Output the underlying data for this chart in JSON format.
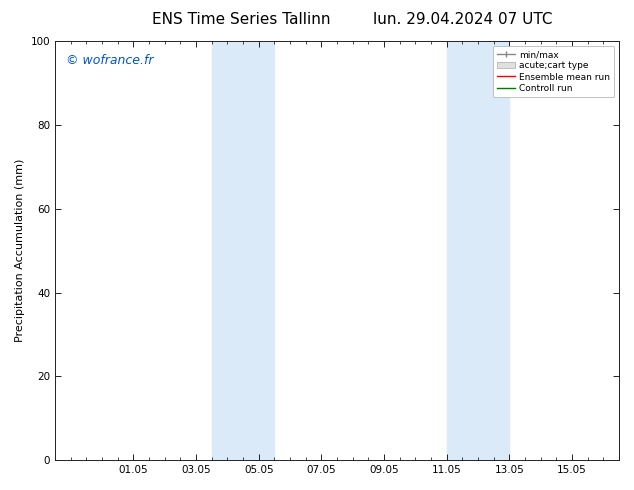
{
  "title_left": "ENS Time Series Tallinn",
  "title_right": "lun. 29.04.2024 07 UTC",
  "ylabel": "Precipitation Accumulation (mm)",
  "watermark": "© wofrance.fr",
  "watermark_color": "#0055cc",
  "ylim": [
    0,
    100
  ],
  "x_ticks_labels": [
    "01.05",
    "03.05",
    "05.05",
    "07.05",
    "09.05",
    "11.05",
    "13.05",
    "15.05"
  ],
  "x_ticks_positions": [
    2.0,
    4.0,
    6.0,
    8.0,
    10.0,
    12.0,
    14.0,
    16.0
  ],
  "xlim": [
    -0.5,
    17.5
  ],
  "background_color": "#ffffff",
  "shade_regions": [
    {
      "xmin": 4.5,
      "xmax": 6.5,
      "color": "#daeaf8"
    },
    {
      "xmin": 12.0,
      "xmax": 14.0,
      "color": "#daeaf8"
    }
  ],
  "title_fontsize": 11,
  "axis_label_fontsize": 8,
  "tick_fontsize": 7.5,
  "watermark_fontsize": 9,
  "yticks": [
    0,
    20,
    40,
    60,
    80,
    100
  ]
}
